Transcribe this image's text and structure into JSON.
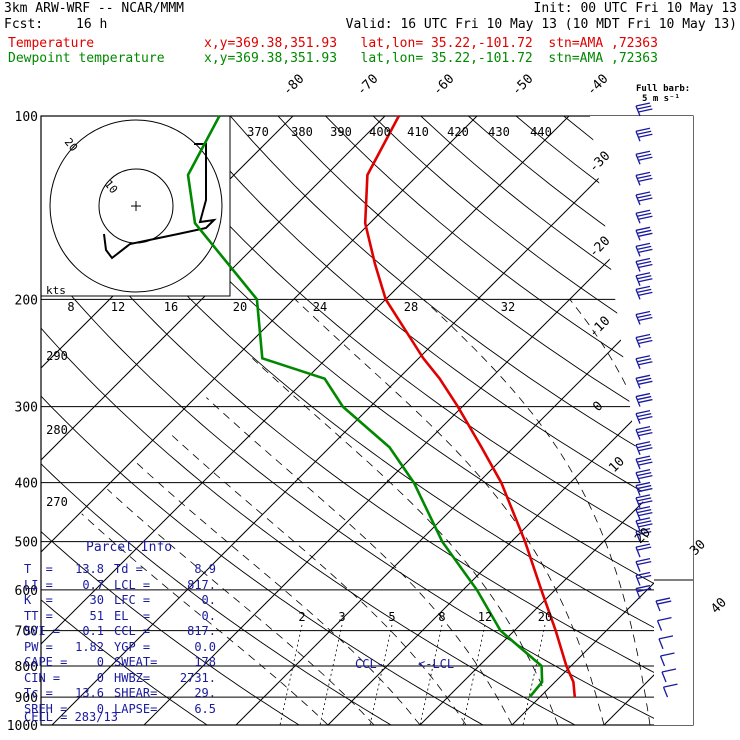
{
  "header": {
    "model": "3km ARW-WRF -- NCAR/MMM",
    "init": "Init: 00 UTC Fri 10 May 13",
    "fcst_label": "Fcst:",
    "fcst_value": "16 h",
    "valid": "Valid: 16 UTC Fri 10 May 13 (10 MDT Fri 10 May 13)",
    "temp_label": "Temperature",
    "temp_loc": "x,y=369.38,351.93   lat,lon= 35.22,-101.72  stn=AMA ,72363",
    "dew_label": "Dewpoint temperature",
    "dew_loc": "x,y=369.38,351.93   lat,lon= 35.22,-101.72  stn=AMA ,72363"
  },
  "barb_legend": {
    "line1": "Full barb:",
    "line2": "5 m s⁻¹"
  },
  "hodograph": {
    "units": "kts",
    "ring_labels": [
      "10",
      "20"
    ]
  },
  "parcel": {
    "title": "Parcel Info",
    "rows": [
      [
        "T  =",
        "13.8",
        "Td =",
        "8.9"
      ],
      [
        "LI =",
        "0.7",
        "LCL =",
        "817."
      ],
      [
        "K  =",
        "30",
        "LFC =",
        "0."
      ],
      [
        "TT =",
        "51",
        "EL  =",
        "0."
      ],
      [
        "SVI =",
        "0.1",
        "CCL =",
        "817."
      ],
      [
        "PW =",
        "1.82",
        "YGP =",
        "0.0"
      ],
      [
        "CAPE =",
        "0",
        "SWEAT=",
        "178"
      ],
      [
        "CIN =",
        "0",
        "HWBZ=",
        "2731."
      ],
      [
        "Tc =",
        "13.6",
        "SHEAR=",
        "29."
      ],
      [
        "SREH =",
        "0",
        "LAPSE=",
        "6.5"
      ]
    ],
    "cell": "CELL = 283/13"
  },
  "annotations": {
    "ccl": "CCL-",
    "lcl": "<-LCL"
  },
  "colors": {
    "temperature": "#e00000",
    "dewpoint": "#008800",
    "isotherm": "#000000",
    "parcel_text": "#1a1aa0",
    "barbs": "#1a1aa0"
  },
  "chart_data": {
    "type": "line",
    "title": "",
    "ylabel": "",
    "xlabel": "",
    "pressure_labels": [
      "100",
      "200",
      "300",
      "400",
      "500",
      "600",
      "700",
      "800",
      "900",
      "1000"
    ],
    "isotherm_labels": [
      "-80",
      "-70",
      "-60",
      "-50",
      "-40",
      "-30",
      "-20",
      "-10",
      "0",
      "10",
      "20",
      "30",
      "40"
    ],
    "theta_labels": [
      "370",
      "380",
      "390",
      "400",
      "410",
      "420",
      "430",
      "440",
      "290",
      "280",
      "270"
    ],
    "mixing_ratio_labels": [
      "2",
      "3",
      "5",
      "8",
      "12",
      "20"
    ],
    "hodo_speed_labels": [
      "8",
      "12",
      "16",
      "20",
      "24",
      "28",
      "32"
    ],
    "series": [
      {
        "name": "Temperature",
        "units": "C",
        "points": [
          [
            900,
            13.8
          ],
          [
            850,
            12.0
          ],
          [
            800,
            9.5
          ],
          [
            700,
            4.5
          ],
          [
            600,
            -1.5
          ],
          [
            500,
            -8.5
          ],
          [
            400,
            -17.5
          ],
          [
            350,
            -23.5
          ],
          [
            300,
            -30.5
          ],
          [
            270,
            -35.5
          ],
          [
            250,
            -39.5
          ],
          [
            200,
            -50.0
          ],
          [
            175,
            -55.0
          ],
          [
            150,
            -60.5
          ],
          [
            125,
            -65.5
          ],
          [
            100,
            -68.5
          ]
        ]
      },
      {
        "name": "Dewpoint temperature",
        "units": "C",
        "points": [
          [
            900,
            8.9
          ],
          [
            850,
            8.6
          ],
          [
            800,
            6.8
          ],
          [
            700,
            -1.5
          ],
          [
            600,
            -8.5
          ],
          [
            500,
            -17.5
          ],
          [
            400,
            -27.0
          ],
          [
            350,
            -33.5
          ],
          [
            300,
            -43.0
          ],
          [
            270,
            -48.0
          ],
          [
            250,
            -57.0
          ],
          [
            200,
            -64.0
          ],
          [
            150,
            -79.0
          ],
          [
            125,
            -85.0
          ],
          [
            100,
            -88.0
          ]
        ]
      }
    ],
    "barb_pressures": [
      100,
      110,
      120,
      130,
      140,
      150,
      160,
      170,
      180,
      190,
      200,
      220,
      240,
      260,
      280,
      300,
      320,
      340,
      360,
      380,
      400,
      420,
      440,
      460,
      480,
      500,
      530,
      560,
      590,
      620,
      650,
      700,
      750,
      800,
      850,
      900
    ]
  }
}
